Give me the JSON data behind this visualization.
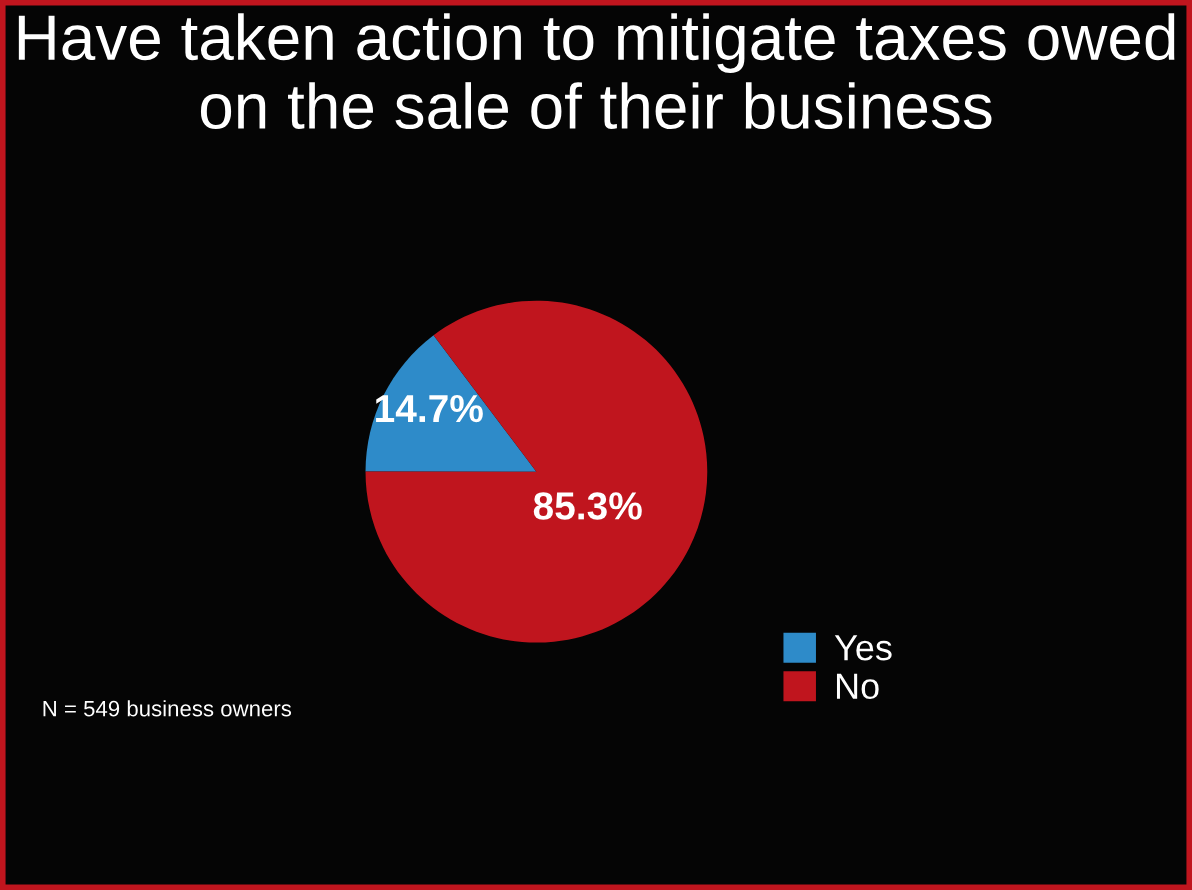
{
  "chart_data": {
    "type": "pie",
    "title": "Have taken action to mitigate taxes owed on the sale of their business",
    "categories": [
      "Yes",
      "No"
    ],
    "values": [
      14.7,
      85.3
    ],
    "value_labels": [
      "14.7%",
      "85.3%"
    ],
    "colors": [
      "#2e8bc9",
      "#c0151e"
    ],
    "legend": "bottom right",
    "annotations": [
      "N = 549 business owners"
    ]
  }
}
